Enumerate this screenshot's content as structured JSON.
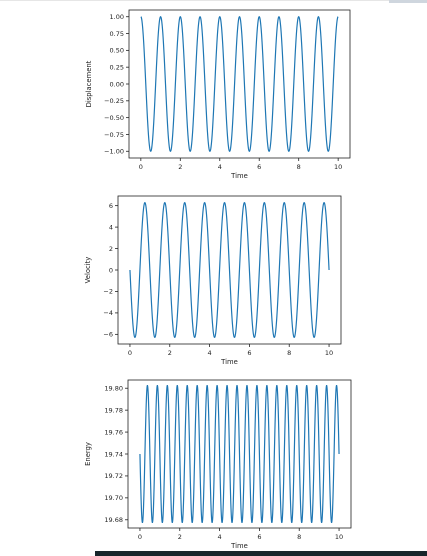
{
  "chart_data": [
    {
      "type": "line",
      "xlabel": "Time",
      "ylabel": "Displacement",
      "xlim": [
        -0.6,
        10.6
      ],
      "ylim": [
        -1.1,
        1.1
      ],
      "xticks": [
        0,
        2,
        4,
        6,
        8,
        10
      ],
      "yticks": [
        1.0,
        0.75,
        0.5,
        0.25,
        0.0,
        -0.25,
        -0.5,
        -0.75,
        -1.0
      ],
      "ytick_labels": [
        "1.00",
        "0.75",
        "0.50",
        "0.25",
        "0.00",
        "−0.25",
        "−0.50",
        "−0.75",
        "−1.00"
      ],
      "series": [
        {
          "function": "cos",
          "amplitude": 1.0,
          "offset": 0.0,
          "period": 1.0,
          "x_range": [
            0,
            10
          ],
          "color": "#1f77b4"
        }
      ]
    },
    {
      "type": "line",
      "xlabel": "Time",
      "ylabel": "Velocity",
      "xlim": [
        -0.6,
        10.6
      ],
      "ylim": [
        -6.9,
        6.9
      ],
      "xticks": [
        0,
        2,
        4,
        6,
        8,
        10
      ],
      "yticks": [
        6,
        4,
        2,
        0,
        -2,
        -4,
        -6
      ],
      "ytick_labels": [
        "6",
        "4",
        "2",
        "0",
        "−2",
        "−4",
        "−6"
      ],
      "series": [
        {
          "function": "-sin",
          "amplitude": 6.28,
          "offset": 0.0,
          "period": 1.0,
          "x_range": [
            0,
            10
          ],
          "color": "#1f77b4"
        }
      ]
    },
    {
      "type": "line",
      "xlabel": "Time",
      "ylabel": "Energy",
      "xlim": [
        -0.6,
        10.6
      ],
      "ylim": [
        19.6725,
        19.8075
      ],
      "xticks": [
        0,
        2,
        4,
        6,
        8,
        10
      ],
      "yticks": [
        19.8,
        19.78,
        19.76,
        19.74,
        19.72,
        19.7,
        19.68
      ],
      "ytick_labels": [
        "19.80",
        "19.78",
        "19.76",
        "19.74",
        "19.72",
        "19.70",
        "19.68"
      ],
      "series": [
        {
          "function": "cos",
          "amplitude": 0.0625,
          "offset": 19.74,
          "period": 0.5,
          "phase_deg": 90,
          "x_range": [
            0,
            10
          ],
          "color": "#1f77b4"
        }
      ]
    }
  ]
}
